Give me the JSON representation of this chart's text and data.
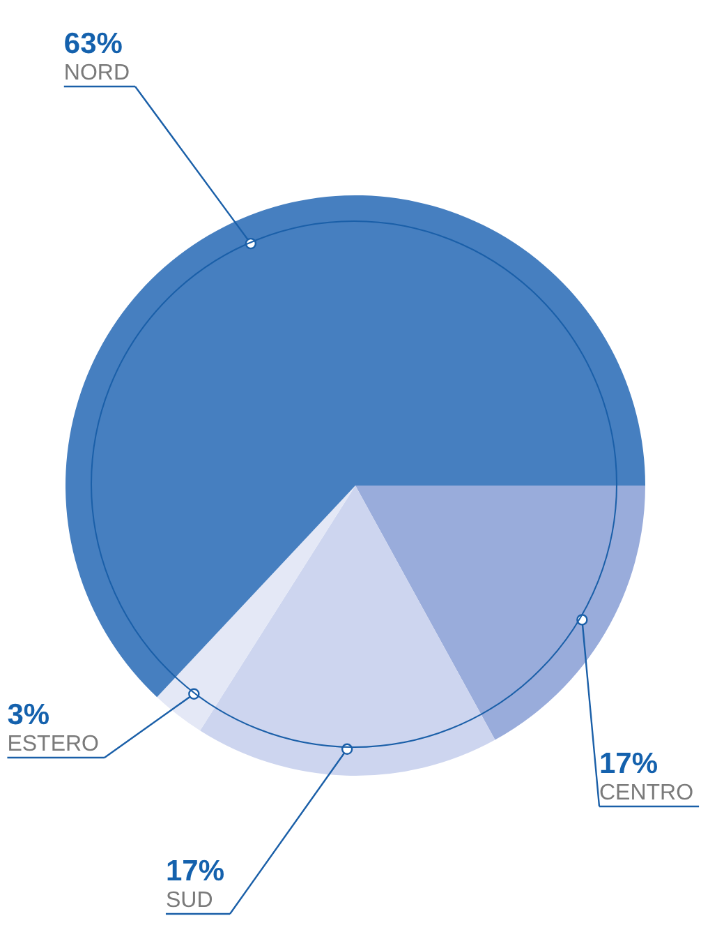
{
  "chart_data": {
    "type": "pie",
    "categories": [
      "CENTRO",
      "SUD",
      "ESTERO",
      "NORD"
    ],
    "values": [
      17,
      17,
      3,
      63
    ],
    "value_labels": [
      "17%",
      "17%",
      "3%",
      "63%"
    ],
    "colors": [
      "#99acdb",
      "#cdd5ef",
      "#e4e8f6",
      "#467fc0"
    ],
    "legend": false
  }
}
